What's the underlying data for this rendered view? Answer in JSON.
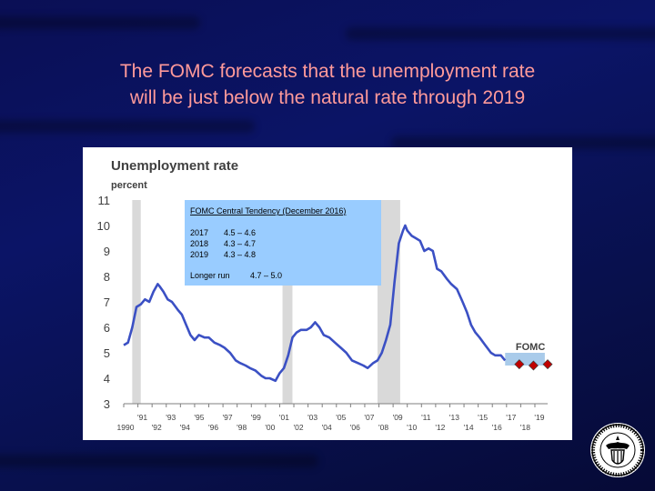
{
  "slide": {
    "title_line1": "The FOMC forecasts that the unemployment rate",
    "title_line2": "will be just below the natural rate through 2019"
  },
  "colors": {
    "background": "#0b1466",
    "title": "#ff9a9a",
    "line": "#3b50c4",
    "recession": "#d9d9d9",
    "forecast_box": "#a9cbea",
    "info_box": "#99ccff",
    "marker": "#c00000"
  },
  "seal_icon": "federal-reserve-seal-icon",
  "chart_data": {
    "type": "line",
    "title": "Unemployment rate",
    "ylabel": "percent",
    "ylim": [
      3,
      11
    ],
    "xlim": [
      1990,
      2019.9
    ],
    "y_ticks": [
      "3",
      "4",
      "5",
      "6",
      "7",
      "8",
      "9",
      "10",
      "11"
    ],
    "x_ticks": [
      {
        "x": 1990,
        "label": "1990"
      },
      {
        "x": 1991,
        "label": "'91"
      },
      {
        "x": 1992,
        "label": "'92"
      },
      {
        "x": 1993,
        "label": "'93"
      },
      {
        "x": 1994,
        "label": "'94"
      },
      {
        "x": 1995,
        "label": "'95"
      },
      {
        "x": 1996,
        "label": "'96"
      },
      {
        "x": 1997,
        "label": "'97"
      },
      {
        "x": 1998,
        "label": "'98"
      },
      {
        "x": 1999,
        "label": "'99"
      },
      {
        "x": 2000,
        "label": "'00"
      },
      {
        "x": 2001,
        "label": "'01"
      },
      {
        "x": 2002,
        "label": "'02"
      },
      {
        "x": 2003,
        "label": "'03"
      },
      {
        "x": 2004,
        "label": "'04"
      },
      {
        "x": 2005,
        "label": "'05"
      },
      {
        "x": 2006,
        "label": "'06"
      },
      {
        "x": 2007,
        "label": "'07"
      },
      {
        "x": 2008,
        "label": "'08"
      },
      {
        "x": 2009,
        "label": "'09"
      },
      {
        "x": 2010,
        "label": "'10"
      },
      {
        "x": 2011,
        "label": "'11"
      },
      {
        "x": 2012,
        "label": "'12"
      },
      {
        "x": 2013,
        "label": "'13"
      },
      {
        "x": 2014,
        "label": "'14"
      },
      {
        "x": 2015,
        "label": "'15"
      },
      {
        "x": 2016,
        "label": "'16"
      },
      {
        "x": 2017,
        "label": "'17"
      },
      {
        "x": 2018,
        "label": "'18"
      },
      {
        "x": 2019,
        "label": "'19"
      }
    ],
    "series": [
      {
        "x": [
          1990.0,
          1990.3,
          1990.6,
          1990.9,
          1991.2,
          1991.5,
          1991.8,
          1992.1,
          1992.4,
          1992.55,
          1992.8,
          1993.1,
          1993.4,
          1993.8,
          1994.1,
          1994.4,
          1994.7,
          1995.0,
          1995.3,
          1995.7,
          1996.0,
          1996.4,
          1996.8,
          1997.1,
          1997.5,
          1997.9,
          1998.2,
          1998.6,
          1998.9,
          1999.3,
          1999.7,
          2000.0,
          2000.3,
          2000.7,
          2001.0,
          2001.3,
          2001.6,
          2001.9,
          2002.2,
          2002.5,
          2002.9,
          2003.2,
          2003.5,
          2003.8,
          2004.1,
          2004.5,
          2004.9,
          2005.3,
          2005.7,
          2006.1,
          2006.5,
          2006.9,
          2007.2,
          2007.6,
          2007.9,
          2008.2,
          2008.5,
          2008.8,
          2009.1,
          2009.4,
          2009.7,
          2009.85,
          2010.0,
          2010.3,
          2010.6,
          2010.9,
          2011.2,
          2011.5,
          2011.8,
          2012.1,
          2012.4,
          2012.8,
          2013.1,
          2013.5,
          2013.9,
          2014.2,
          2014.5,
          2014.8,
          2015.1,
          2015.5,
          2015.9,
          2016.2,
          2016.6,
          2016.9
        ],
        "y": [
          5.3,
          5.4,
          6.0,
          6.8,
          6.9,
          7.1,
          7.0,
          7.4,
          7.7,
          7.6,
          7.4,
          7.1,
          7.0,
          6.7,
          6.5,
          6.1,
          5.7,
          5.5,
          5.7,
          5.6,
          5.6,
          5.4,
          5.3,
          5.2,
          5.0,
          4.7,
          4.6,
          4.5,
          4.4,
          4.3,
          4.1,
          4.0,
          4.0,
          3.9,
          4.2,
          4.4,
          4.9,
          5.6,
          5.8,
          5.9,
          5.9,
          6.0,
          6.2,
          6.0,
          5.7,
          5.6,
          5.4,
          5.2,
          5.0,
          4.7,
          4.6,
          4.5,
          4.4,
          4.6,
          4.7,
          5.0,
          5.5,
          6.1,
          7.8,
          9.3,
          9.8,
          10.0,
          9.8,
          9.6,
          9.5,
          9.4,
          9.0,
          9.1,
          9.0,
          8.3,
          8.2,
          7.9,
          7.7,
          7.5,
          7.0,
          6.6,
          6.1,
          5.8,
          5.6,
          5.3,
          5.0,
          4.9,
          4.9,
          4.7
        ]
      }
    ],
    "recessions": [
      [
        1990.6,
        1991.2
      ],
      [
        2001.2,
        2001.9
      ],
      [
        2007.9,
        2009.5
      ]
    ],
    "forecast_band": {
      "label": "FOMC",
      "x": [
        2016.9,
        2019.7
      ],
      "y_low": 4.5,
      "y_high": 5.0
    },
    "forecast_points": {
      "x": [
        2017.9,
        2018.9,
        2019.9
      ],
      "y": [
        4.55,
        4.5,
        4.55
      ]
    },
    "info_box": {
      "title": "FOMC Central Tendency (December 2016)",
      "rows": [
        {
          "year": "2017",
          "value": "4.5 – 4.6"
        },
        {
          "year": "2018",
          "value": "4.3 – 4.7"
        },
        {
          "year": "2019",
          "value": "4.3 – 4.8"
        }
      ],
      "longer_run_label": "Longer run",
      "longer_run_value": "4.7 – 5.0"
    }
  }
}
